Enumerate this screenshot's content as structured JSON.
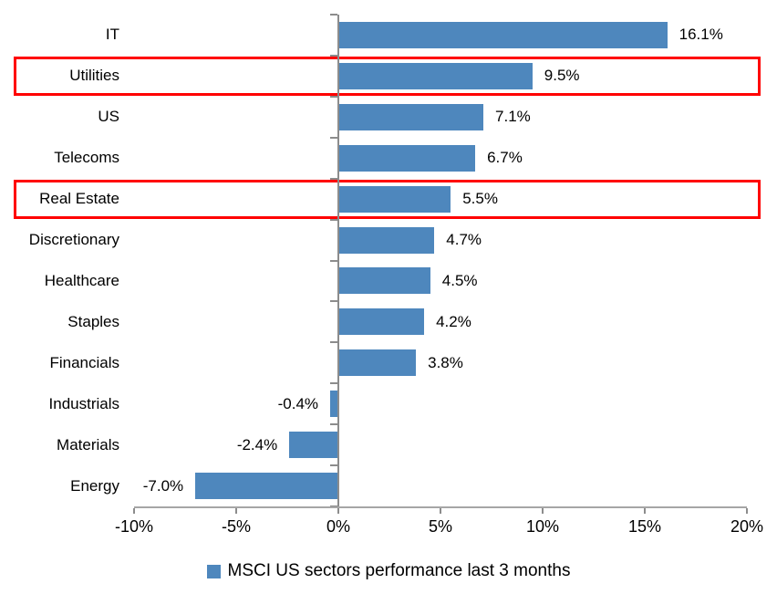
{
  "chart_data": {
    "type": "bar",
    "orientation": "horizontal",
    "title": "",
    "categories": [
      "IT",
      "Utilities",
      "US",
      "Telecoms",
      "Real Estate",
      "Discretionary",
      "Healthcare",
      "Staples",
      "Financials",
      "Industrials",
      "Materials",
      "Energy"
    ],
    "values": [
      16.1,
      9.5,
      7.1,
      6.7,
      5.5,
      4.7,
      4.5,
      4.2,
      3.8,
      -0.4,
      -2.4,
      -7.0
    ],
    "data_labels": [
      "16.1%",
      "9.5%",
      "7.1%",
      "6.7%",
      "5.5%",
      "4.7%",
      "4.5%",
      "4.2%",
      "3.8%",
      "-0.4%",
      "-2.4%",
      "-7.0%"
    ],
    "xlim": [
      -10,
      20
    ],
    "x_tick_values": [
      -10,
      -5,
      0,
      5,
      10,
      15,
      20
    ],
    "x_tick_labels": [
      "-10%",
      "-5%",
      "0%",
      "5%",
      "10%",
      "15%",
      "20%"
    ],
    "grid": false,
    "legend_position": "bottom",
    "legend": "MSCI US sectors performance last 3 months",
    "bar_color": "#4e87bd",
    "axis_color": "#8c8c8c",
    "highlight_color": "#ff0000",
    "highlighted_categories": [
      "Utilities",
      "Real Estate"
    ]
  }
}
